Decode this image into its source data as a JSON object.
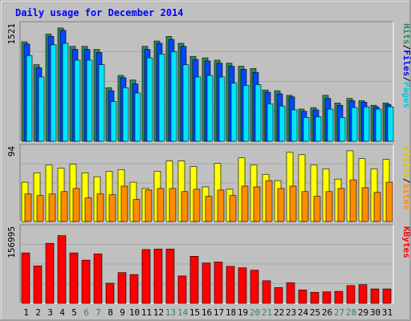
{
  "chart_data": {
    "type": "bar",
    "title": "Daily usage for December 2014",
    "x": [
      "1",
      "2",
      "3",
      "4",
      "5",
      "6",
      "7",
      "8",
      "9",
      "10",
      "11",
      "12",
      "13",
      "14",
      "15",
      "16",
      "17",
      "18",
      "19",
      "20",
      "21",
      "22",
      "23",
      "24",
      "25",
      "26",
      "27",
      "28",
      "29",
      "30",
      "31"
    ],
    "weekend_days": [
      "6",
      "7",
      "13",
      "14",
      "20",
      "21",
      "27",
      "28"
    ],
    "panels": [
      {
        "id": "hits",
        "max_label": "1521",
        "ylim": [
          0,
          1521
        ],
        "right_labels": [
          "Pages",
          "/",
          "Files",
          "/",
          "Hits"
        ],
        "series": [
          {
            "name": "Hits",
            "color": "#2e8b57",
            "values": [
              1300,
              1000,
              1400,
              1480,
              1240,
              1240,
              1200,
              700,
              860,
              800,
              1240,
              1310,
              1370,
              1280,
              1110,
              1090,
              1060,
              1020,
              980,
              950,
              670,
              660,
              600,
              420,
              440,
              600,
              500,
              560,
              530,
              470,
              500
            ]
          },
          {
            "name": "Files",
            "color": "#0047ff",
            "values": [
              1270,
              960,
              1370,
              1450,
              1200,
              1200,
              1160,
              660,
              830,
              750,
              1200,
              1280,
              1330,
              1240,
              1070,
              1050,
              1020,
              980,
              940,
              900,
              640,
              620,
              580,
              390,
              410,
              560,
              470,
              530,
              510,
              450,
              480
            ]
          },
          {
            "name": "Pages",
            "color": "#00e5ff",
            "values": [
              1120,
              840,
              1260,
              1280,
              1060,
              1060,
              1000,
              520,
              700,
              630,
              1090,
              1140,
              1170,
              1000,
              840,
              860,
              840,
              760,
              730,
              740,
              490,
              460,
              410,
              310,
              320,
              420,
              310,
              440,
              450,
              420,
              450
            ]
          }
        ]
      },
      {
        "id": "visits",
        "max_label": "94",
        "ylim": [
          0,
          94
        ],
        "right_labels": [
          "Sites",
          "/",
          "Visits"
        ],
        "series": [
          {
            "name": "Visits",
            "color": "#ffff00",
            "values": [
              50,
              62,
              72,
              68,
              73,
              62,
              57,
              64,
              66,
              50,
              42,
              64,
              77,
              77,
              70,
              44,
              74,
              41,
              81,
              72,
              60,
              52,
              88,
              85,
              72,
              67,
              54,
              90,
              80,
              67,
              79
            ]
          },
          {
            "name": "Sites",
            "color": "#ff8c00",
            "values": [
              35,
              33,
              35,
              38,
              42,
              30,
              35,
              34,
              45,
              28,
              40,
              42,
              42,
              38,
              41,
              32,
              40,
              33,
              45,
              44,
              52,
              42,
              45,
              38,
              32,
              38,
              42,
              53,
              43,
              37,
              50
            ]
          }
        ]
      },
      {
        "id": "kbytes",
        "max_label": "156995",
        "ylim": [
          0,
          156995
        ],
        "right_labels": [
          "KBytes"
        ],
        "series": [
          {
            "name": "KBytes",
            "color": "#ff0000",
            "values": [
              105000,
              78000,
              125000,
              141000,
              105000,
              90000,
              103000,
              42000,
              64000,
              60000,
              112000,
              113000,
              113000,
              57000,
              98000,
              84000,
              86000,
              77000,
              74000,
              69000,
              47000,
              33000,
              43000,
              28000,
              23000,
              24000,
              25000,
              37000,
              39000,
              30000,
              30000
            ]
          }
        ]
      }
    ]
  }
}
